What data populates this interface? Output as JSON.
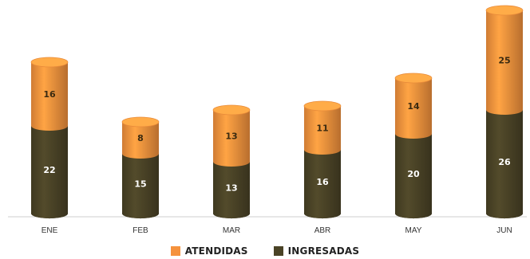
{
  "chart_data": {
    "type": "bar",
    "stacked": true,
    "style": "cylinder",
    "categories": [
      "ENE",
      "FEB",
      "MAR",
      "ABR",
      "MAY",
      "JUN"
    ],
    "series": [
      {
        "name": "INGRESADAS",
        "values": [
          22,
          15,
          13,
          16,
          20,
          26
        ],
        "color": "#4a4326",
        "label_color": "#ffffff"
      },
      {
        "name": "ATENDIDAS",
        "values": [
          16,
          8,
          13,
          11,
          14,
          25
        ],
        "color": "#f5923d",
        "label_color": "#3a2a10"
      }
    ],
    "legend_position": "bottom-center",
    "grid": false
  }
}
